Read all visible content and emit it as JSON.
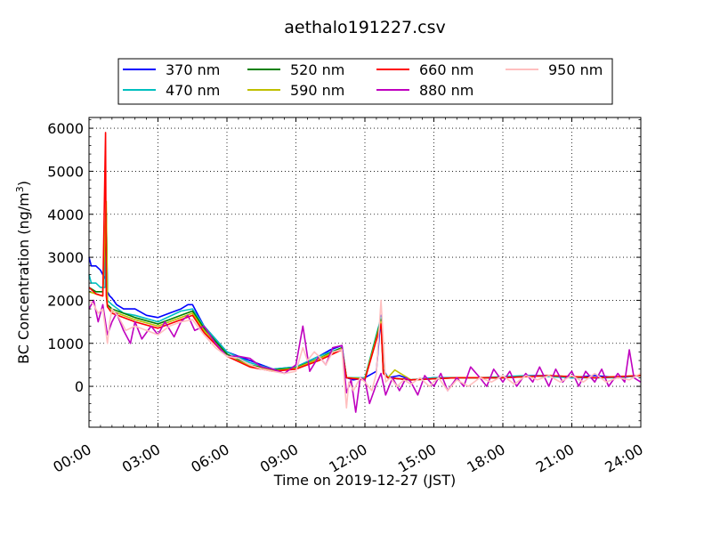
{
  "chart_data": {
    "type": "line",
    "title": "aethalo191227.csv",
    "xlabel": "Time on 2019-12-27 (JST)",
    "ylabel": "BC Concentration (ng/m",
    "ylabel_sup": "3",
    "ylabel_close": ")",
    "xlim": [
      0,
      24
    ],
    "ylim": [
      -950,
      6250
    ],
    "grid": true,
    "legend_position": "top",
    "x_ticks": [
      {
        "value": 0,
        "label": "00:00"
      },
      {
        "value": 3,
        "label": "03:00"
      },
      {
        "value": 6,
        "label": "06:00"
      },
      {
        "value": 9,
        "label": "09:00"
      },
      {
        "value": 12,
        "label": "12:00"
      },
      {
        "value": 15,
        "label": "15:00"
      },
      {
        "value": 18,
        "label": "18:00"
      },
      {
        "value": 21,
        "label": "21:00"
      },
      {
        "value": 24,
        "label": "24:00"
      }
    ],
    "y_ticks": [
      {
        "value": 0,
        "label": "0"
      },
      {
        "value": 1000,
        "label": "1000"
      },
      {
        "value": 2000,
        "label": "2000"
      },
      {
        "value": 3000,
        "label": "3000"
      },
      {
        "value": 4000,
        "label": "4000"
      },
      {
        "value": 5000,
        "label": "5000"
      },
      {
        "value": 6000,
        "label": "6000"
      }
    ],
    "series": [
      {
        "name": "370 nm",
        "color": "#0000ff",
        "x": [
          0,
          0.1,
          0.3,
          0.5,
          0.7,
          0.75,
          0.8,
          0.9,
          1.0,
          1.2,
          1.5,
          2.0,
          2.5,
          3.0,
          3.5,
          4.0,
          4.3,
          4.5,
          4.7,
          5.0,
          5.5,
          6.0,
          7.0,
          8.0,
          9.0,
          10.0,
          10.5,
          11.0,
          11.2,
          11.5,
          12.0,
          12.5,
          12.7,
          12.8,
          13.0,
          13.5,
          14.0,
          15.0,
          16.0,
          17.0,
          18.0,
          19.0,
          20.0,
          21.0,
          22.0,
          23.0,
          24.0
        ],
        "y": [
          3000,
          2800,
          2800,
          2700,
          2500,
          4050,
          2200,
          2100,
          2050,
          1900,
          1800,
          1800,
          1650,
          1600,
          1700,
          1800,
          1900,
          1900,
          1700,
          1400,
          1100,
          800,
          600,
          400,
          450,
          700,
          850,
          950,
          200,
          150,
          200,
          350,
          1650,
          400,
          200,
          250,
          150,
          200,
          200,
          200,
          200,
          250,
          250,
          200,
          250,
          200,
          250
        ]
      },
      {
        "name": "470 nm",
        "color": "#00bfbf",
        "x": [
          0,
          0.1,
          0.3,
          0.5,
          0.7,
          0.75,
          0.8,
          1.0,
          1.5,
          2.0,
          3.0,
          4.0,
          4.5,
          5.0,
          6.0,
          7.0,
          8.0,
          9.0,
          10.0,
          11.0,
          11.2,
          12.0,
          12.7,
          12.8,
          13.0,
          14.0,
          15.0,
          17.0,
          19.0,
          21.0,
          23.0,
          24.0
        ],
        "y": [
          2600,
          2400,
          2400,
          2300,
          2300,
          4000,
          2000,
          1900,
          1700,
          1650,
          1500,
          1750,
          1800,
          1400,
          800,
          550,
          400,
          450,
          700,
          900,
          200,
          200,
          1600,
          350,
          200,
          150,
          200,
          200,
          250,
          200,
          200,
          250
        ]
      },
      {
        "name": "520 nm",
        "color": "#008000",
        "x": [
          0,
          0.3,
          0.6,
          0.75,
          0.8,
          1.0,
          2.0,
          3.0,
          4.0,
          4.5,
          5.0,
          6.0,
          7.0,
          8.0,
          9.0,
          10.0,
          11.0,
          11.2,
          12.0,
          12.7,
          12.8,
          13.0,
          14.0,
          16.0,
          18.0,
          20.0,
          22.0,
          24.0
        ],
        "y": [
          2300,
          2200,
          2200,
          4000,
          1900,
          1800,
          1600,
          1450,
          1650,
          1750,
          1350,
          750,
          500,
          380,
          430,
          650,
          900,
          200,
          180,
          1550,
          350,
          200,
          150,
          200,
          200,
          250,
          200,
          250
        ]
      },
      {
        "name": "590 nm",
        "color": "#bfbf00",
        "x": [
          0,
          0.3,
          0.6,
          0.75,
          0.8,
          1.0,
          2.0,
          3.0,
          4.0,
          4.5,
          5.0,
          6.0,
          7.0,
          8.0,
          9.0,
          10.0,
          11.0,
          11.2,
          12.0,
          12.7,
          12.8,
          13.0,
          13.3,
          14.0,
          16.0,
          18.0,
          20.0,
          22.0,
          24.0
        ],
        "y": [
          2200,
          2150,
          2100,
          4300,
          1850,
          1750,
          1550,
          1400,
          1600,
          1700,
          1300,
          700,
          480,
          360,
          420,
          640,
          880,
          200,
          180,
          1500,
          350,
          200,
          380,
          150,
          200,
          200,
          250,
          200,
          250
        ]
      },
      {
        "name": "660 nm",
        "color": "#ff0000",
        "x": [
          0,
          0.3,
          0.6,
          0.72,
          0.75,
          0.8,
          1.0,
          1.5,
          2.0,
          3.0,
          4.0,
          4.5,
          5.0,
          6.0,
          7.0,
          8.0,
          9.0,
          10.0,
          11.0,
          11.2,
          12.0,
          12.7,
          12.8,
          13.0,
          14.0,
          16.0,
          18.0,
          20.0,
          22.0,
          24.0
        ],
        "y": [
          2300,
          2150,
          2100,
          5900,
          2100,
          1850,
          1700,
          1600,
          1500,
          1350,
          1550,
          1650,
          1250,
          700,
          450,
          350,
          400,
          600,
          850,
          200,
          150,
          1450,
          300,
          200,
          150,
          200,
          200,
          250,
          200,
          250
        ]
      },
      {
        "name": "880 nm",
        "color": "#bf00bf",
        "x": [
          0,
          0.2,
          0.4,
          0.6,
          0.8,
          1.0,
          1.2,
          1.5,
          1.8,
          2.0,
          2.3,
          2.7,
          3.0,
          3.3,
          3.7,
          4.0,
          4.3,
          4.6,
          5.0,
          5.5,
          6.0,
          6.5,
          7.0,
          7.5,
          8.0,
          8.5,
          9.0,
          9.3,
          9.6,
          10.0,
          10.3,
          10.6,
          11.0,
          11.2,
          11.4,
          11.6,
          11.8,
          12.0,
          12.2,
          12.5,
          12.7,
          12.9,
          13.2,
          13.5,
          13.8,
          14.0,
          14.3,
          14.6,
          15.0,
          15.3,
          15.6,
          16.0,
          16.3,
          16.6,
          17.0,
          17.3,
          17.6,
          18.0,
          18.3,
          18.6,
          19.0,
          19.3,
          19.6,
          20.0,
          20.3,
          20.6,
          21.0,
          21.3,
          21.6,
          22.0,
          22.3,
          22.6,
          23.0,
          23.3,
          23.5,
          23.7,
          24.0
        ],
        "y": [
          1800,
          2000,
          1500,
          1900,
          1200,
          1500,
          1700,
          1300,
          1000,
          1500,
          1100,
          1400,
          1200,
          1500,
          1150,
          1500,
          1650,
          1300,
          1400,
          1000,
          700,
          700,
          650,
          450,
          400,
          300,
          500,
          1400,
          350,
          700,
          500,
          900,
          950,
          -150,
          150,
          -600,
          200,
          150,
          -400,
          50,
          300,
          -200,
          200,
          -100,
          200,
          100,
          -200,
          250,
          0,
          300,
          -100,
          200,
          0,
          450,
          200,
          0,
          400,
          100,
          350,
          0,
          300,
          100,
          450,
          0,
          400,
          100,
          350,
          0,
          350,
          100,
          400,
          0,
          300,
          100,
          850,
          200,
          100
        ]
      },
      {
        "name": "950 nm",
        "color": "#ffbfbf",
        "x": [
          0,
          0.2,
          0.4,
          0.6,
          0.8,
          0.9,
          1.0,
          1.3,
          1.6,
          2.0,
          2.5,
          3.0,
          3.5,
          4.0,
          4.5,
          5.0,
          5.5,
          6.0,
          6.5,
          7.0,
          7.5,
          8.0,
          8.5,
          9.0,
          9.3,
          9.5,
          9.8,
          10.0,
          10.3,
          10.6,
          11.0,
          11.2,
          11.3,
          11.5,
          11.8,
          12.0,
          12.3,
          12.5,
          12.7,
          12.9,
          13.1,
          13.4,
          13.7,
          14.0,
          14.4,
          14.8,
          15.2,
          15.6,
          16.0,
          16.5,
          17.0,
          17.5,
          18.0,
          18.5,
          19.0,
          19.5,
          20.0,
          20.5,
          21.0,
          21.5,
          22.0,
          22.5,
          23.0,
          23.5,
          24.0
        ],
        "y": [
          2000,
          1900,
          1700,
          1800,
          1000,
          1500,
          1800,
          1600,
          1300,
          1400,
          1300,
          1200,
          1400,
          1500,
          1550,
          1200,
          900,
          700,
          650,
          500,
          400,
          350,
          300,
          350,
          900,
          600,
          800,
          700,
          500,
          800,
          850,
          -500,
          100,
          -100,
          200,
          100,
          -100,
          300,
          2000,
          100,
          200,
          0,
          150,
          50,
          200,
          0,
          200,
          -100,
          150,
          0,
          200,
          100,
          250,
          50,
          250,
          150,
          250,
          100,
          250,
          100,
          300,
          100,
          200,
          150,
          300
        ]
      }
    ]
  }
}
